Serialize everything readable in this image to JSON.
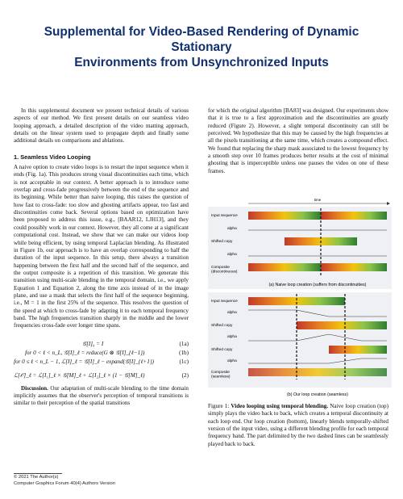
{
  "title_line1": "Supplemental for Video-Based Rendering of Dynamic Stationary",
  "title_line2": "Environments from Unsynchronized Inputs",
  "intro": "In this supplemental document we present technical details of various aspects of our method. We first present details on our seamless video looping approach, a detailed description of the video matting approach, details on the linear system used to propagate depth and finally some additional details on comparisons and ablations.",
  "section1": "1. Seamless Video Looping",
  "p1": "A naive option to create video loops is to restart the input sequence when it ends (Fig. 1a). This produces strong visual discontinuities each time, which is not acceptable in our context. A better approach is to introduce some overlap and cross-fade progressively between the end of the sequence and its beginning. While better than naive looping, this raises the question of how fast to cross-fade: too slow and ghosting artifacts appear, too fast and discontinuities come back. Several options based on optimization have been proposed to address this issue, e.g., [BAAR12, LJH13], and they could possibly work in our context. However, they all come at a significant computational cost. Instead, we show that we can make our videos loop while being efficient, by using temporal Laplacian blending. As illustrated in Figure 1b, our approach is to have an overlap corresponding to half the duration of the input sequence. In this setup, there always a transition happening between the first half and the second half of the sequence, and the output composite is a repetition of this transition. We generate this transition using multi-scale blending in the temporal domain, i.e., we apply Equation 1 and Equation 2, along the time axis instead of in the image plane, and use a mask that selects the first half of the sequence beginning, i.e., M = 1 in the first 25% of the sequence. This resolves the question of the speed at which to cross-fade by adapting it to each temporal frequency band. The high frequencies transition sharply in the middle and the lower frequencies cross-fade over longer time spans.",
  "eq1": "𝒢[I]₀ = I",
  "eq1b": "for 0 < ℓ < n_L,   𝒢[I]_ℓ = reduce(G ⊗ 𝒢[I]_{ℓ−1})",
  "eq1c": "for 0 ≤ ℓ < n_L − 1,   ℒ[I]_ℓ = 𝒢[I]_ℓ − expand(𝒢[I]_{ℓ+1})",
  "eq2": "ℒ[𝒪]_ℓ = ℒ[I₁]_ℓ × 𝒢[M]_ℓ + ℒ[I₂]_ℓ × (1 − 𝒢[M]_ℓ)",
  "eq_nums": [
    "(1a)",
    "(1b)",
    "(1c)",
    "(2)"
  ],
  "discussion_label": "Discussion.",
  "discussion": "Our adaptation of multi-scale blending to the time domain implicitly assumes that the observer's perception of temporal transitions is similar to their perception of the spatial transitions",
  "right_p1": "for which the original algorithm [BA83] was designed. Our experiments show that it is true to a first approximation and the discontinuities are greatly reduced (Figure 2). However, a slight temporal discontinuity can still be perceived. We hypothesize that this may be caused by the high frequencies at all the pixels transitioning at the same time, which creates a compound effect. We found that replacing the sharp mask associated to the lowest frequency by a smooth step over 10 frames produces better results at the cost of minimal ghosting that is imperceptible unless one pauses the video on one of these frames.",
  "figure": {
    "time_label": "time",
    "labels_a": [
      "Input sequence",
      "alpha",
      "Shifted copy",
      "alpha",
      "Composite\n(discontinuous)"
    ],
    "caption_a": "(a) Naive loop creation (suffers from discontinuities)",
    "labels_b": [
      "Input sequence",
      "alpha",
      "Shifted copy",
      "alpha",
      "Shifted copy",
      "alpha",
      "Composite\n(seamless)"
    ],
    "caption_b": "(b) Our loop creation (seamless)",
    "colors": {
      "red": "#c0392b",
      "orange": "#e67e22",
      "yellow": "#f1c40f",
      "lightgreen": "#8bc34a",
      "green": "#2e7d32",
      "dashes": "#111111"
    }
  },
  "caption_label": "Figure 1:",
  "caption_bold": "Video looping using temporal blending.",
  "caption_text": "Naive loop creation (top) simply plays the video back to back, which creates a temporal discontinuity at each loop end. Our loop creation (bottom), linearly blends temporally-shifted version of the input video, using a different blending profile for each temporal frequency band. The part delimited by the two dashed lines can be seamlessly played back to back.",
  "footer_line1": "© 2021 The Author(s)",
  "footer_line2": "Computer Graphics Forum 40(4) Authors Version"
}
